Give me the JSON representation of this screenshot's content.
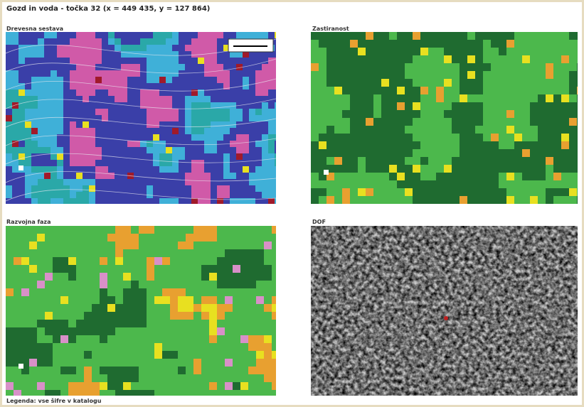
{
  "header": {
    "title": "Gozd in voda - točka 32 (x = 449 435, y = 127 864)"
  },
  "panels": [
    {
      "label": "Drevesna sestava"
    },
    {
      "label": "Zastiranost"
    },
    {
      "label": "Razvojna faza"
    },
    {
      "label": "DOF"
    }
  ],
  "footer": {
    "note": "Legenda: vse šifre v katalogu"
  }
}
